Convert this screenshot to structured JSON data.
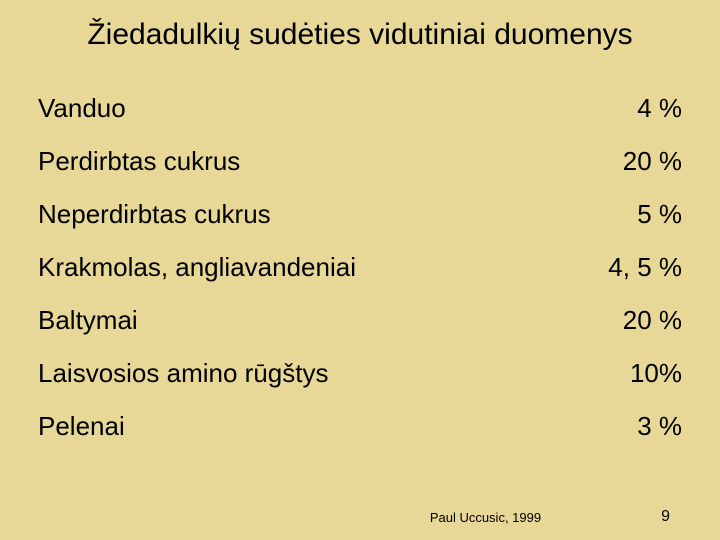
{
  "title": "Žiedadulkių sudėties vidutiniai duomenys",
  "rows": [
    {
      "label": "Vanduo",
      "value": "4 %"
    },
    {
      "label": "Perdirbtas cukrus",
      "value": "20 %"
    },
    {
      "label": "Neperdirbtas cukrus",
      "value": "5 %"
    },
    {
      "label": "Krakmolas, angliavandeniai",
      "value": "4, 5 %"
    },
    {
      "label": "Baltymai",
      "value": "20 %"
    },
    {
      "label": "Laisvosios amino rūgštys",
      "value": "10%"
    },
    {
      "label": "Pelenai",
      "value": "3 %"
    }
  ],
  "source": "Paul Uccusic, 1999",
  "pageNumber": "9",
  "colors": {
    "background": "#e8d898",
    "text": "#000000"
  },
  "typography": {
    "title_fontsize": 30,
    "row_fontsize": 26,
    "footer_fontsize": 13,
    "font_family": "Arial"
  }
}
